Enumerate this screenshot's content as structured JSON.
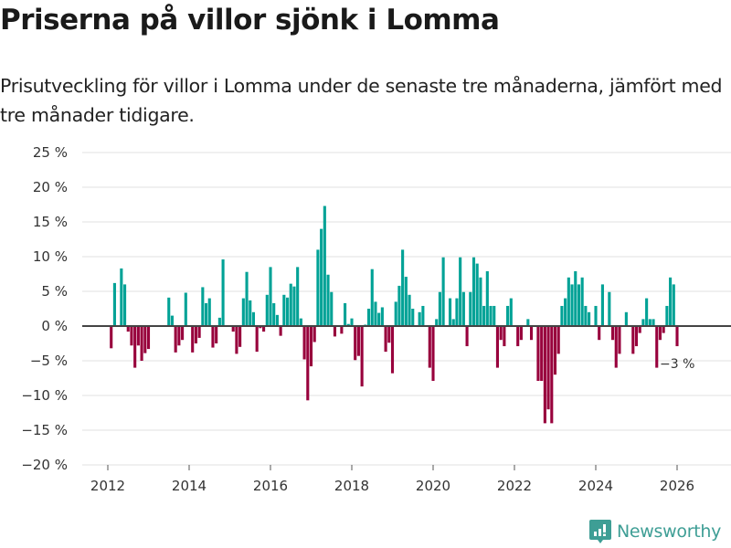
{
  "header": {
    "title": "Priserna på villor sjönk i Lomma",
    "subtitle": "Prisutveckling för villor i Lomma under de senaste tre månaderna, jämfört med tre månader tidigare."
  },
  "branding": {
    "name": "Newsworthy",
    "icon": "bar-chart-speech-bubble-icon",
    "color": "#3e9e95"
  },
  "colors": {
    "positive": "#00a296",
    "negative": "#98003c",
    "zero_line": "#444444",
    "grid": "#e0e0e0"
  },
  "chart_data": {
    "type": "bar",
    "title": "Priserna på villor sjönk i Lomma",
    "xlabel": "",
    "ylabel": "",
    "ylim": [
      -20,
      25
    ],
    "grid": true,
    "y_ticks": [
      25,
      20,
      15,
      10,
      5,
      0,
      -5,
      -10,
      -15,
      -20
    ],
    "y_tick_labels": [
      "25 %",
      "20 %",
      "15 %",
      "10 %",
      "5 %",
      "0 %",
      "−5 %",
      "−10 %",
      "−15 %",
      "−20 %"
    ],
    "x_ticks": [
      2012,
      2014,
      2016,
      2018,
      2020,
      2022,
      2024,
      2026
    ],
    "x_tick_labels": [
      "2012",
      "2014",
      "2016",
      "2018",
      "2020",
      "2022",
      "2024",
      "2026"
    ],
    "x_start": "2012-02",
    "frequency": "monthly",
    "values": [
      -3.2,
      6.2,
      0,
      8.3,
      6.0,
      -0.8,
      -2.8,
      -6.0,
      -2.8,
      -5.0,
      -3.9,
      -3.3,
      0,
      0,
      0,
      0,
      0,
      4.1,
      1.5,
      -3.8,
      -2.8,
      -2.0,
      4.8,
      0,
      -3.8,
      -2.5,
      -1.7,
      5.6,
      3.3,
      4.0,
      -3.1,
      -2.5,
      1.2,
      9.6,
      0,
      0,
      -0.8,
      -4.0,
      -3.0,
      4.0,
      7.8,
      3.7,
      2.0,
      -3.7,
      -0.3,
      -0.8,
      4.5,
      8.5,
      3.3,
      1.6,
      -1.4,
      4.5,
      4.1,
      6.1,
      5.7,
      8.5,
      1.1,
      -4.8,
      -10.7,
      -5.8,
      -2.3,
      11.0,
      14.0,
      17.3,
      7.4,
      4.9,
      -1.5,
      0,
      -1.1,
      3.3,
      0.3,
      1.1,
      -4.9,
      -4.3,
      -8.7,
      0.2,
      2.5,
      8.2,
      3.5,
      1.9,
      2.7,
      -3.7,
      -2.4,
      -6.8,
      3.5,
      5.8,
      11.0,
      7.1,
      4.5,
      2.5,
      0,
      2.0,
      2.9,
      0,
      -6.0,
      -7.9,
      1.0,
      4.9,
      9.9,
      0,
      4.0,
      1.0,
      4.0,
      9.9,
      4.9,
      -2.9,
      4.9,
      9.9,
      9.0,
      7.0,
      2.9,
      7.9,
      2.9,
      2.9,
      -6.0,
      -2.0,
      -2.9,
      2.9,
      4.0,
      0,
      -2.9,
      -2.0,
      0,
      1.0,
      -2.0,
      0,
      -7.9,
      -7.9,
      -14.0,
      -12.0,
      -14.0,
      -7.0,
      -4.0,
      2.9,
      4.0,
      7.0,
      6.0,
      7.9,
      6.0,
      7.0,
      2.9,
      2.0,
      0,
      2.9,
      -2.0,
      6.0,
      0,
      4.9,
      -2.0,
      -6.0,
      -4.0,
      0,
      2.0,
      0,
      -4.0,
      -2.9,
      -1.0,
      1.0,
      4.0,
      1.0,
      1.0,
      -6.0,
      -2.0,
      -1.0,
      2.9,
      7.0,
      6.0,
      -2.9
    ],
    "annotations": [
      {
        "label": "−3 %",
        "target": "last"
      }
    ]
  }
}
